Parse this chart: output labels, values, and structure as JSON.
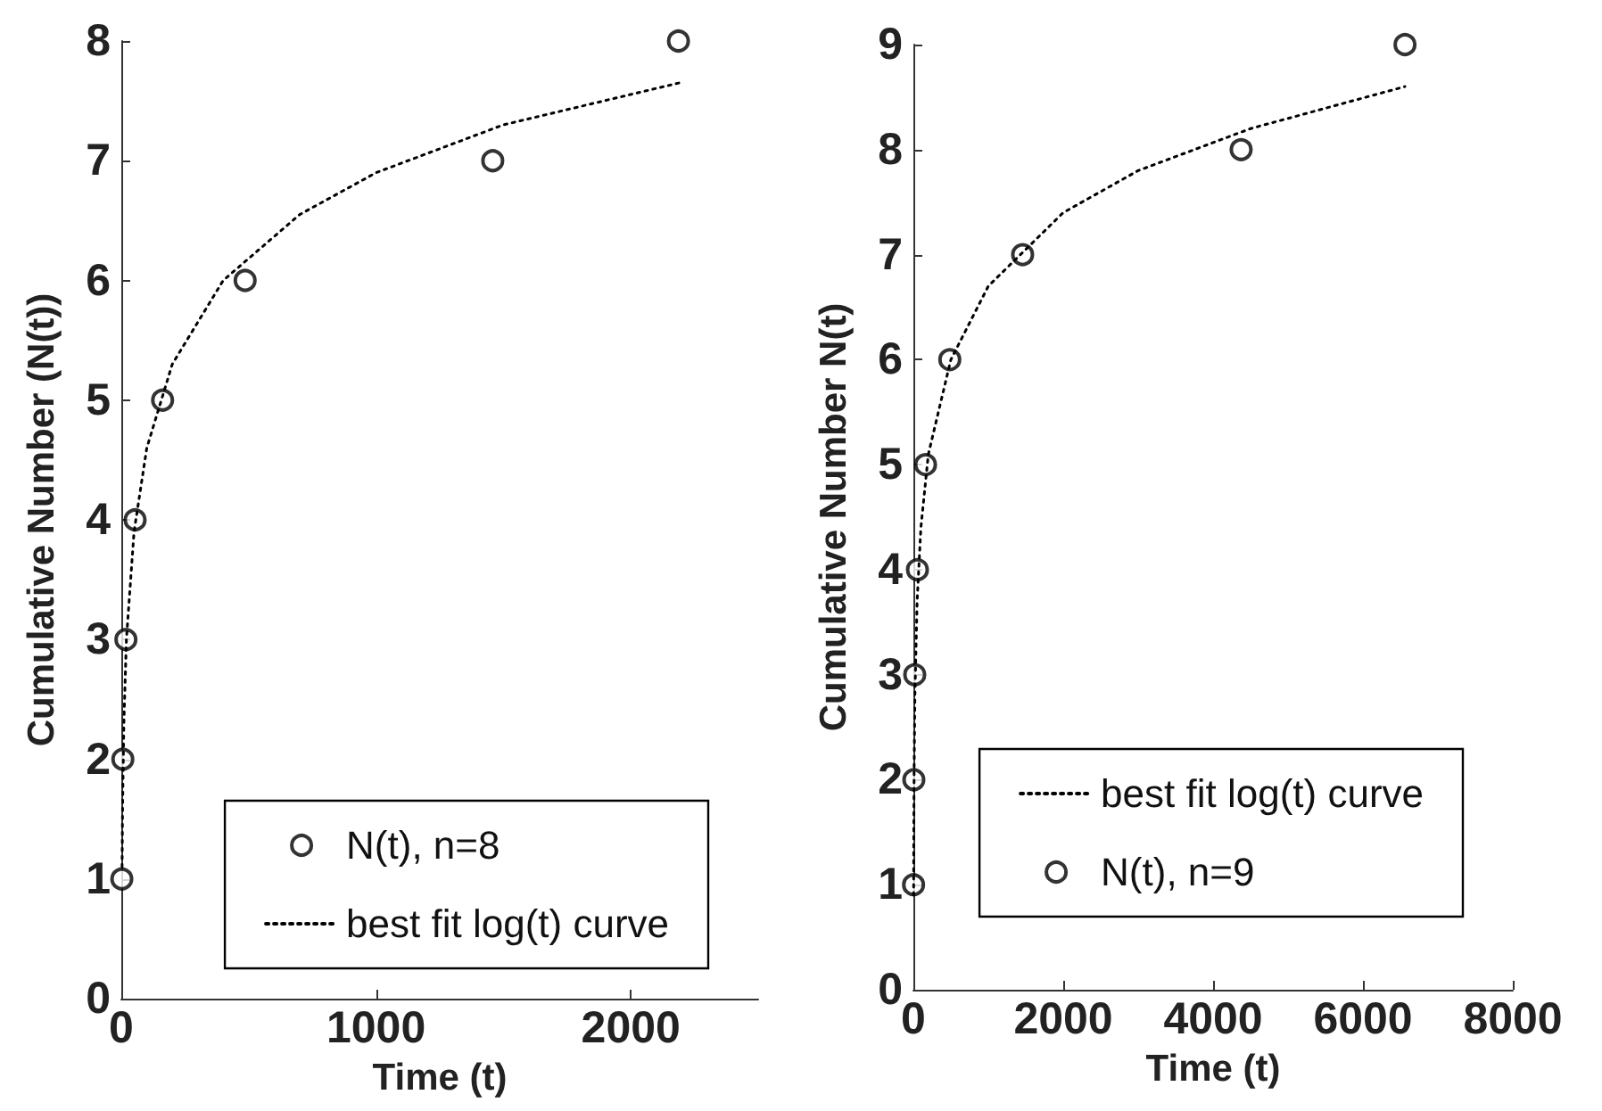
{
  "chart_data": [
    {
      "type": "scatter",
      "xlabel": "Time (t)",
      "ylabel": "Cumulative Number (N(t))",
      "xlim": [
        0,
        2500
      ],
      "xticks": [
        0,
        1000,
        2000
      ],
      "ylim": [
        0,
        8
      ],
      "yticks": [
        0,
        1,
        2,
        3,
        4,
        5,
        6,
        7,
        8
      ],
      "grid": false,
      "legend": "bottom right",
      "series": [
        {
          "name": "N(t), n=8",
          "marker": "circle",
          "color": "#000000",
          "x": [
            2,
            6,
            18,
            54,
            162,
            486,
            1458,
            2187
          ],
          "values": [
            1,
            2,
            3,
            4,
            5,
            6,
            7,
            8
          ]
        },
        {
          "name": "best fit log(t) curve",
          "type": "line",
          "marker": "none",
          "line_style": "dotted",
          "color": "#000000",
          "x": [
            3,
            5,
            10,
            20,
            50,
            100,
            200,
            400,
            700,
            1000,
            1500,
            2190
          ],
          "values": [
            1.1,
            1.6,
            2.3,
            3.0,
            3.9,
            4.6,
            5.3,
            6.0,
            6.55,
            6.9,
            7.3,
            7.65
          ]
        }
      ]
    },
    {
      "type": "scatter",
      "xlabel": "Time (t)",
      "ylabel": "Cumulative Number N(t)",
      "xlim": [
        0,
        8000
      ],
      "xticks": [
        0,
        2000,
        4000,
        6000,
        8000
      ],
      "ylim": [
        0,
        9
      ],
      "yticks": [
        0,
        1,
        2,
        3,
        4,
        5,
        6,
        7,
        8,
        9
      ],
      "grid": false,
      "legend": "bottom right",
      "series": [
        {
          "name": "best fit log(t) curve",
          "type": "line",
          "marker": "none",
          "line_style": "dotted",
          "color": "#000000",
          "x": [
            3,
            5,
            10,
            20,
            50,
            100,
            200,
            500,
            1000,
            2000,
            3000,
            4500,
            6560
          ],
          "values": [
            0.9,
            1.4,
            2.1,
            2.8,
            3.7,
            4.4,
            5.1,
            6.0,
            6.7,
            7.4,
            7.8,
            8.2,
            8.6
          ]
        },
        {
          "name": "N(t), n=9",
          "marker": "circle",
          "color": "#000000",
          "x": [
            2,
            6,
            18,
            54,
            162,
            486,
            1458,
            4374,
            6561
          ],
          "values": [
            1,
            2,
            3,
            4,
            5,
            6,
            7,
            8,
            9
          ]
        }
      ]
    }
  ]
}
